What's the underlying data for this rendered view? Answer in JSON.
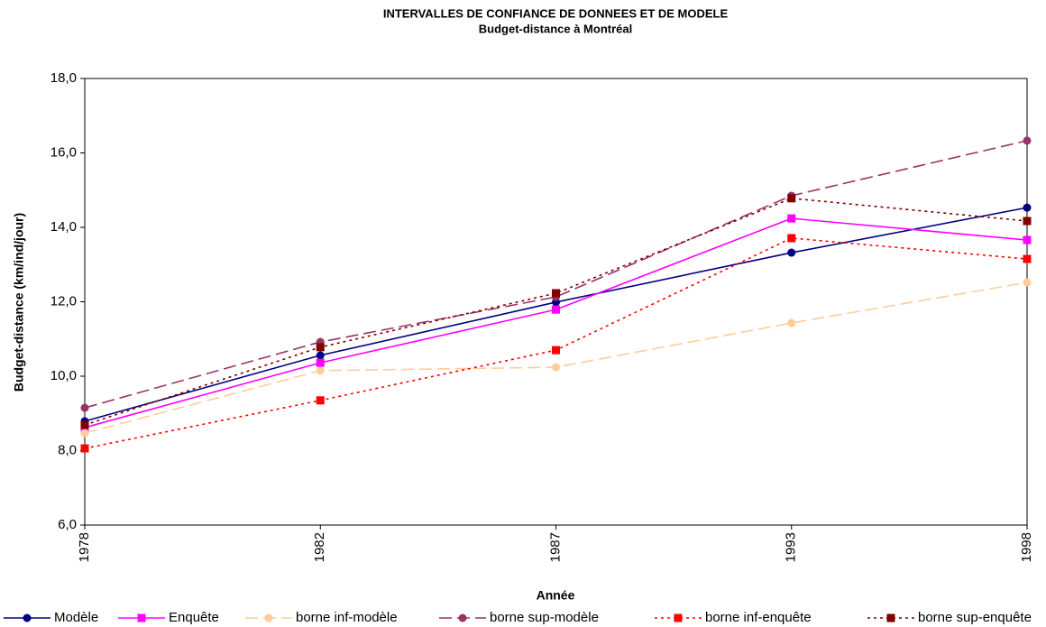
{
  "chart_data": {
    "type": "line",
    "title": "INTERVALLES DE CONFIANCE DE DONNEES ET DE MODELE",
    "subtitle": "Budget-distance à Montréal",
    "x_label": "Année",
    "y_label": "Budget-distance (km/ind/jour)",
    "categories": [
      "1978",
      "1982",
      "1987",
      "1993",
      "1998"
    ],
    "ylim": [
      6,
      18
    ],
    "yticks": [
      {
        "value": 6,
        "label": "6,0"
      },
      {
        "value": 8,
        "label": "8,0"
      },
      {
        "value": 10,
        "label": "10,0"
      },
      {
        "value": 12,
        "label": "12,0"
      },
      {
        "value": 14,
        "label": "14,0"
      },
      {
        "value": 16,
        "label": "16,0"
      },
      {
        "value": 18,
        "label": "18,0"
      }
    ],
    "legend": "bottom",
    "series": [
      {
        "name": "Modèle",
        "color": "#000080",
        "marker": "circle",
        "dash": "solid",
        "values": [
          8.79,
          10.56,
          11.99,
          13.32,
          14.53
        ]
      },
      {
        "name": "Enquête",
        "color": "#ff00ff",
        "marker": "square",
        "dash": "solid",
        "values": [
          8.62,
          10.36,
          11.79,
          14.24,
          13.66
        ]
      },
      {
        "name": "borne inf-modèle",
        "color": "#ffcc99",
        "marker": "circle",
        "dash": "dashed",
        "values": [
          8.47,
          10.15,
          10.24,
          11.43,
          12.52
        ]
      },
      {
        "name": "borne sup-modèle",
        "color": "#993366",
        "marker": "circle",
        "dash": "dashed",
        "values": [
          9.15,
          10.92,
          12.13,
          14.85,
          16.33
        ]
      },
      {
        "name": "borne inf-enquête",
        "color": "#ff0000",
        "marker": "square",
        "dash": "dotted",
        "values": [
          8.06,
          9.35,
          10.7,
          13.71,
          13.15
        ]
      },
      {
        "name": "borne sup-enquête",
        "color": "#800000",
        "marker": "square",
        "dash": "dotted",
        "values": [
          8.69,
          10.78,
          12.23,
          14.78,
          14.17
        ]
      }
    ]
  }
}
